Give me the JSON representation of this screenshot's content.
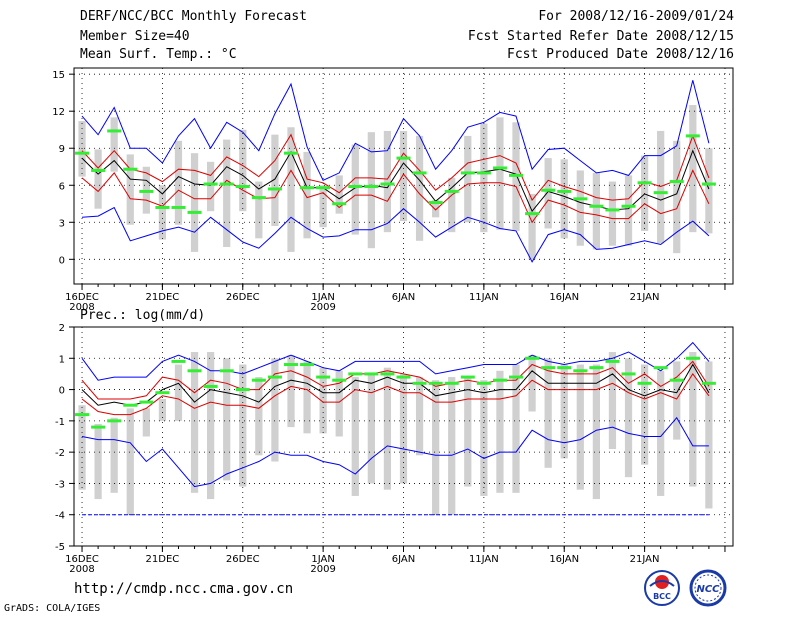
{
  "header": {
    "title": "DERF/NCC/BCC Monthly Forecast",
    "member_size": "Member Size=40",
    "variable": "Mean Surf. Temp.: °C",
    "period": "For 2008/12/16-2009/01/24",
    "started": "Fcst Started Refer Date 2008/12/15",
    "produced": "Fcst Produced Date 2008/12/16"
  },
  "footer": {
    "url": "http://cmdp.ncc.cma.gov.cn",
    "grads": "GrADS: COLA/IGES",
    "logo_bcc": "BCC",
    "logo_ncc": "NCC"
  },
  "colors": {
    "max_min": "#0000ff",
    "spread": "#dd0000",
    "mean": "#000000",
    "obs": "#33ee33",
    "box": "#d0d0d0",
    "grid": "#000000"
  },
  "chart_data": [
    {
      "type": "line",
      "title": "Mean Surf. Temp.: °C",
      "ylabel": "°C",
      "ylim": [
        -2,
        15.5
      ],
      "yticks": [
        0,
        3,
        6,
        9,
        12,
        15
      ],
      "x_tick_days": [
        1,
        6,
        11,
        16,
        21,
        26,
        31,
        36,
        41
      ],
      "x_tick_labels": [
        "16DEC",
        "21DEC",
        "26DEC",
        "1JAN",
        "6JAN",
        "11JAN",
        "16JAN",
        "21JAN",
        ""
      ],
      "x_year_labels": [
        "2008",
        "",
        "",
        "2009",
        "",
        "",
        "",
        "",
        ""
      ],
      "days": 40,
      "series": [
        {
          "name": "max",
          "values": [
            11.6,
            10.1,
            12.3,
            9.0,
            9.0,
            7.8,
            10.0,
            11.4,
            9.0,
            11.1,
            10.3,
            8.8,
            11.8,
            14.2,
            9.1,
            6.4,
            7.0,
            9.4,
            8.7,
            8.8,
            11.4,
            10.0,
            7.3,
            8.8,
            10.7,
            11.1,
            11.9,
            11.6,
            7.3,
            8.9,
            9.0,
            8.0,
            7.0,
            7.2,
            6.8,
            8.4,
            8.4,
            9.2,
            14.5,
            9.4
          ]
        },
        {
          "name": "upper_spread",
          "values": [
            8.8,
            7.4,
            8.8,
            7.3,
            7.0,
            6.3,
            7.3,
            7.2,
            6.8,
            8.3,
            7.6,
            6.7,
            8.0,
            10.1,
            6.5,
            6.2,
            5.4,
            6.6,
            6.6,
            6.5,
            8.6,
            7.2,
            5.6,
            6.6,
            7.8,
            8.1,
            8.4,
            7.8,
            4.8,
            6.4,
            5.9,
            5.5,
            5.0,
            4.8,
            4.9,
            6.3,
            5.9,
            6.4,
            10.0,
            6.6
          ]
        },
        {
          "name": "mean",
          "values": [
            8.2,
            6.9,
            8.0,
            6.5,
            6.4,
            5.3,
            6.7,
            6.1,
            6.0,
            7.5,
            6.8,
            5.7,
            6.5,
            8.7,
            5.8,
            5.8,
            4.9,
            5.8,
            6.0,
            5.8,
            7.8,
            6.4,
            4.7,
            5.8,
            7.0,
            7.1,
            7.3,
            6.9,
            3.9,
            5.5,
            5.1,
            4.6,
            4.3,
            4.0,
            4.1,
            5.3,
            4.8,
            5.3,
            8.8,
            5.7
          ]
        },
        {
          "name": "lower_spread",
          "values": [
            6.6,
            5.5,
            7.0,
            4.9,
            4.8,
            4.3,
            5.6,
            4.9,
            4.9,
            6.4,
            5.6,
            4.9,
            5.0,
            7.2,
            5.0,
            5.4,
            4.2,
            5.2,
            5.2,
            4.7,
            6.9,
            5.3,
            4.0,
            5.2,
            6.1,
            6.2,
            6.2,
            5.9,
            3.0,
            4.8,
            4.4,
            3.8,
            3.6,
            3.3,
            3.3,
            4.5,
            3.7,
            4.1,
            7.2,
            4.5
          ]
        },
        {
          "name": "min",
          "values": [
            3.4,
            3.5,
            4.2,
            1.5,
            1.9,
            2.3,
            2.6,
            2.2,
            3.4,
            2.4,
            1.4,
            0.9,
            2.1,
            3.4,
            2.5,
            1.8,
            1.9,
            2.4,
            2.4,
            2.9,
            4.1,
            3.0,
            1.8,
            2.6,
            3.4,
            3.0,
            2.5,
            2.3,
            -0.2,
            2.0,
            2.4,
            2.0,
            0.8,
            0.9,
            1.2,
            1.5,
            1.2,
            2.2,
            3.1,
            1.9
          ]
        },
        {
          "name": "box_top",
          "values": [
            11.2,
            8.9,
            11.5,
            8.5,
            7.5,
            6.0,
            9.6,
            8.6,
            7.9,
            9.7,
            10.5,
            6.3,
            10.1,
            10.7,
            8.7,
            6.0,
            6.8,
            9.3,
            10.3,
            10.4,
            10.4,
            10.0,
            4.8,
            6.6,
            10.0,
            11.0,
            11.5,
            11.1,
            5.3,
            8.2,
            8.1,
            7.2,
            7.0,
            6.3,
            6.8,
            8.4,
            10.4,
            9.6,
            12.5,
            9.0
          ]
        },
        {
          "name": "box_bottom",
          "values": [
            6.7,
            4.1,
            7.1,
            2.8,
            3.7,
            1.6,
            2.8,
            0.6,
            3.9,
            1.0,
            3.9,
            1.7,
            2.7,
            0.6,
            1.7,
            2.6,
            3.7,
            2.0,
            0.9,
            2.2,
            3.1,
            1.5,
            3.4,
            2.2,
            3.0,
            2.2,
            2.4,
            2.3,
            0.0,
            2.5,
            1.7,
            1.1,
            0.8,
            1.1,
            1.1,
            2.3,
            1.3,
            0.5,
            2.2,
            2.1
          ]
        },
        {
          "name": "observed",
          "values": [
            8.6,
            7.2,
            10.4,
            7.3,
            5.5,
            4.2,
            4.2,
            3.8,
            6.1,
            6.1,
            5.9,
            5.0,
            5.7,
            8.6,
            5.8,
            5.8,
            4.5,
            5.9,
            5.9,
            6.1,
            8.2,
            7.0,
            4.6,
            5.5,
            7.0,
            7.0,
            7.4,
            6.8,
            3.7,
            5.6,
            5.5,
            4.9,
            4.3,
            4.0,
            4.3,
            6.2,
            5.4,
            6.3,
            10.0,
            6.1
          ]
        }
      ]
    },
    {
      "type": "line",
      "title": "Prec.: log(mm/d)",
      "ylabel": "log(mm/d)",
      "ylim": [
        -5,
        2
      ],
      "yticks": [
        -5,
        -4,
        -3,
        -2,
        -1,
        0,
        1,
        2
      ],
      "x_tick_days": [
        1,
        6,
        11,
        16,
        21,
        26,
        31,
        36,
        41
      ],
      "x_tick_labels": [
        "16DEC",
        "21DEC",
        "26DEC",
        "1JAN",
        "6JAN",
        "11JAN",
        "16JAN",
        "21JAN",
        ""
      ],
      "x_year_labels": [
        "2008",
        "",
        "",
        "2009",
        "",
        "",
        "",
        "",
        ""
      ],
      "days": 40,
      "series": [
        {
          "name": "max",
          "values": [
            1.0,
            0.3,
            0.4,
            0.4,
            0.4,
            0.9,
            1.1,
            0.9,
            0.6,
            0.6,
            0.5,
            0.7,
            0.9,
            1.1,
            0.9,
            0.7,
            0.6,
            0.9,
            0.9,
            0.9,
            0.9,
            0.9,
            0.5,
            0.6,
            0.7,
            0.8,
            0.8,
            0.8,
            1.1,
            0.9,
            0.8,
            0.9,
            0.9,
            1.0,
            1.2,
            0.9,
            0.6,
            1.0,
            1.5,
            0.9
          ]
        },
        {
          "name": "upper_spread",
          "values": [
            0.3,
            -0.3,
            -0.3,
            -0.3,
            -0.2,
            0.4,
            0.3,
            -0.1,
            0.3,
            0.2,
            0.0,
            0.0,
            0.5,
            0.6,
            0.4,
            0.1,
            0.2,
            0.5,
            0.5,
            0.6,
            0.5,
            0.4,
            0.1,
            0.2,
            0.3,
            0.2,
            0.3,
            0.3,
            0.8,
            0.6,
            0.5,
            0.5,
            0.5,
            0.7,
            0.2,
            0.5,
            0.1,
            0.4,
            0.9,
            0.1
          ]
        },
        {
          "name": "mean",
          "values": [
            0.0,
            -0.5,
            -0.4,
            -0.5,
            -0.4,
            0.0,
            0.2,
            -0.4,
            0.0,
            -0.1,
            -0.2,
            -0.4,
            0.1,
            0.3,
            0.2,
            -0.1,
            -0.1,
            0.3,
            0.2,
            0.4,
            0.2,
            0.2,
            -0.2,
            -0.1,
            0.0,
            -0.1,
            0.0,
            0.0,
            0.6,
            0.2,
            0.2,
            0.2,
            0.2,
            0.5,
            0.0,
            -0.2,
            0.0,
            -0.1,
            0.8,
            -0.1
          ]
        },
        {
          "name": "lower_spread",
          "values": [
            -0.3,
            -0.7,
            -0.8,
            -0.8,
            -0.6,
            -0.2,
            -0.3,
            -0.6,
            -0.4,
            -0.5,
            -0.5,
            -0.6,
            -0.2,
            0.1,
            0.0,
            -0.4,
            -0.4,
            0.0,
            -0.1,
            0.1,
            -0.1,
            -0.1,
            -0.4,
            -0.4,
            -0.3,
            -0.3,
            -0.3,
            -0.2,
            0.3,
            0.0,
            0.0,
            0.0,
            0.0,
            0.2,
            -0.1,
            -0.3,
            -0.1,
            -0.3,
            0.5,
            -0.2
          ]
        },
        {
          "name": "min",
          "values": [
            -1.5,
            -1.6,
            -1.6,
            -1.7,
            -2.3,
            -1.9,
            -2.5,
            -3.1,
            -3.0,
            -2.7,
            -2.5,
            -2.3,
            -2.0,
            -2.1,
            -2.1,
            -2.3,
            -2.4,
            -2.7,
            -2.2,
            -1.8,
            -1.9,
            -2.0,
            -2.1,
            -2.1,
            -1.9,
            -2.2,
            -2.0,
            -2.0,
            -1.3,
            -1.6,
            -1.7,
            -1.6,
            -1.3,
            -1.2,
            -1.4,
            -1.5,
            -1.5,
            -0.9,
            -1.8,
            -1.8
          ]
        },
        {
          "name": "box_top",
          "values": [
            -0.5,
            -1.1,
            -0.9,
            -0.6,
            -0.6,
            -0.3,
            0.8,
            1.2,
            1.2,
            1.0,
            0.8,
            0.4,
            1.0,
            1.1,
            0.9,
            0.7,
            0.6,
            0.4,
            0.5,
            0.7,
            0.5,
            0.4,
            0.3,
            0.4,
            0.4,
            0.3,
            0.6,
            0.8,
            1.1,
            1.0,
            0.8,
            0.8,
            0.8,
            1.2,
            1.0,
            0.8,
            0.6,
            0.9,
            1.2,
            0.9
          ]
        },
        {
          "name": "box_bottom",
          "values": [
            -3.2,
            -3.5,
            -3.3,
            -4.0,
            -1.5,
            -1.0,
            -1.0,
            -3.3,
            -3.5,
            -2.9,
            -3.1,
            -2.1,
            -2.3,
            -1.2,
            -1.4,
            -1.4,
            -1.5,
            -3.4,
            -3.0,
            -3.2,
            -3.0,
            -2.1,
            -4.0,
            -4.0,
            -3.1,
            -3.4,
            -3.3,
            -3.3,
            -0.7,
            -2.5,
            -2.2,
            -3.2,
            -3.5,
            -1.9,
            -2.8,
            -2.4,
            -3.4,
            -1.6,
            -3.1,
            -3.8
          ]
        },
        {
          "name": "observed",
          "values": [
            -0.8,
            -1.2,
            -1.0,
            -0.5,
            -0.4,
            -0.1,
            0.9,
            0.6,
            0.1,
            0.6,
            0.0,
            0.3,
            0.4,
            0.8,
            0.8,
            0.4,
            0.3,
            0.5,
            0.5,
            0.5,
            0.4,
            0.2,
            0.2,
            0.2,
            0.4,
            0.2,
            0.3,
            0.4,
            1.0,
            0.7,
            0.7,
            0.6,
            0.7,
            0.9,
            0.5,
            0.2,
            0.7,
            0.3,
            1.0,
            0.2
          ]
        }
      ]
    }
  ]
}
